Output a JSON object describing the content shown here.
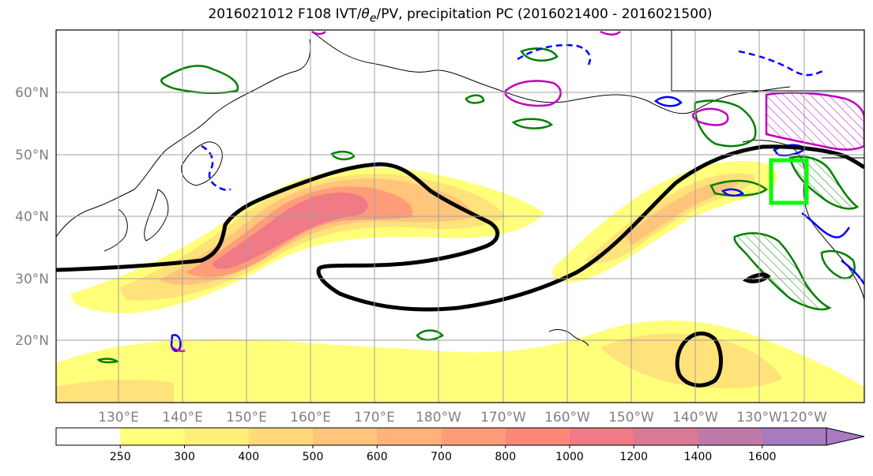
{
  "title": {
    "prefix": "2016021012 F108 IVT/",
    "theta": "θ",
    "theta_sub": "e",
    "suffix": "/PV, precipitation PC (2016021400 - 2016021500)"
  },
  "map": {
    "lat_labels": [
      "60°N",
      "50°N",
      "40°N",
      "30°N",
      "20°N"
    ],
    "lon_labels": [
      "130°E",
      "140°E",
      "150°E",
      "160°E",
      "170°E",
      "180°W",
      "170°W",
      "160°W",
      "150°W",
      "140°W",
      "130°W",
      "120°W"
    ],
    "grid_color": "#a0a0a0",
    "label_color": "#808080"
  },
  "colorbar": {
    "ticks": [
      "250",
      "300",
      "400",
      "500",
      "600",
      "700",
      "800",
      "1000",
      "1200",
      "1400",
      "1600"
    ],
    "colors": [
      "#ffffff",
      "#ffff7a",
      "#fff07a",
      "#ffd97a",
      "#ffc57a",
      "#ffb27a",
      "#ff9d7a",
      "#ff877a",
      "#f07a85",
      "#d97a95",
      "#bf7aaa",
      "#a87ac0"
    ]
  },
  "legend_colors": {
    "jet_contour": "#000000",
    "pv_contour": "#0000ff",
    "theta_contour": "#c000c0",
    "precip_contour": "#008000",
    "target_box": "#00ff00"
  }
}
